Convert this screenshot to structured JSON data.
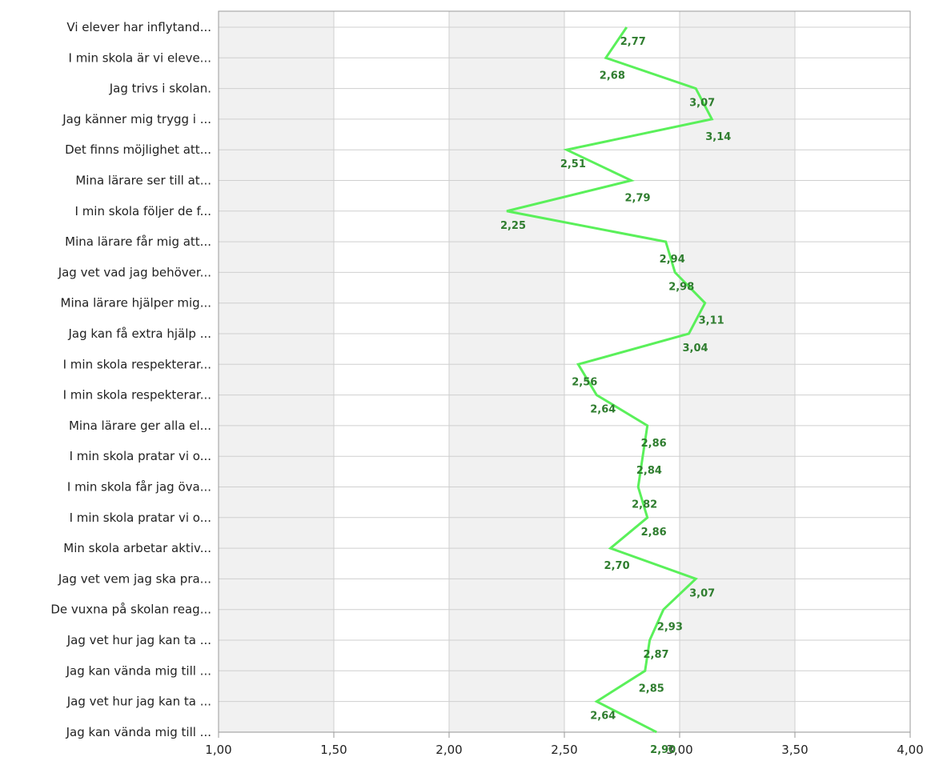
{
  "chart_data": {
    "type": "line",
    "orientation": "horizontal-categories",
    "categories": [
      "Vi elever har inflytand...",
      "I min skola är vi eleve...",
      "Jag trivs i skolan.",
      "Jag känner mig trygg i ...",
      "Det finns möjlighet att...",
      "Mina lärare ser till at...",
      "I min skola följer de f...",
      "Mina lärare får mig att...",
      "Jag vet vad jag behöver...",
      "Mina lärare hjälper mig...",
      "Jag kan få extra hjälp ...",
      "I min skola respekterar...",
      "I min skola respekterar...",
      "Mina lärare ger alla el...",
      "I min skola pratar vi o...",
      "I min skola får jag öva...",
      "I min skola pratar vi o...",
      "Min skola arbetar aktiv...",
      "Jag vet vem jag ska pra...",
      "De vuxna på skolan reag...",
      "Jag vet hur jag kan ta ...",
      "Jag kan vända mig till ...",
      "Jag vet hur jag kan ta ...",
      "Jag kan vända mig till ..."
    ],
    "values": [
      2.77,
      2.68,
      3.07,
      3.14,
      2.51,
      2.79,
      2.25,
      2.94,
      2.98,
      3.11,
      3.04,
      2.56,
      2.64,
      2.86,
      2.84,
      2.82,
      2.86,
      2.7,
      3.07,
      2.93,
      2.87,
      2.85,
      2.64,
      2.9
    ],
    "data_labels": [
      "2,77",
      "2,68",
      "3,07",
      "3,14",
      "2,51",
      "2,79",
      "2,25",
      "2,94",
      "2,98",
      "3,11",
      "3,04",
      "2,56",
      "2,64",
      "2,86",
      "2,84",
      "2,82",
      "2,86",
      "2,70",
      "3,07",
      "2,93",
      "2,87",
      "2,85",
      "2,64",
      "2,90"
    ],
    "value_axis": {
      "range": [
        1.0,
        4.0
      ],
      "ticks": [
        1.0,
        1.5,
        2.0,
        2.5,
        3.0,
        3.5,
        4.0
      ],
      "tick_labels": [
        "1,00",
        "1,50",
        "2,00",
        "2,50",
        "3,00",
        "3,50",
        "4,00"
      ]
    },
    "title": "",
    "xlabel": "",
    "ylabel": "",
    "grid": true,
    "legend": "none",
    "colors": {
      "line": "#5af05a",
      "data_label": "#2f7d2f"
    }
  }
}
